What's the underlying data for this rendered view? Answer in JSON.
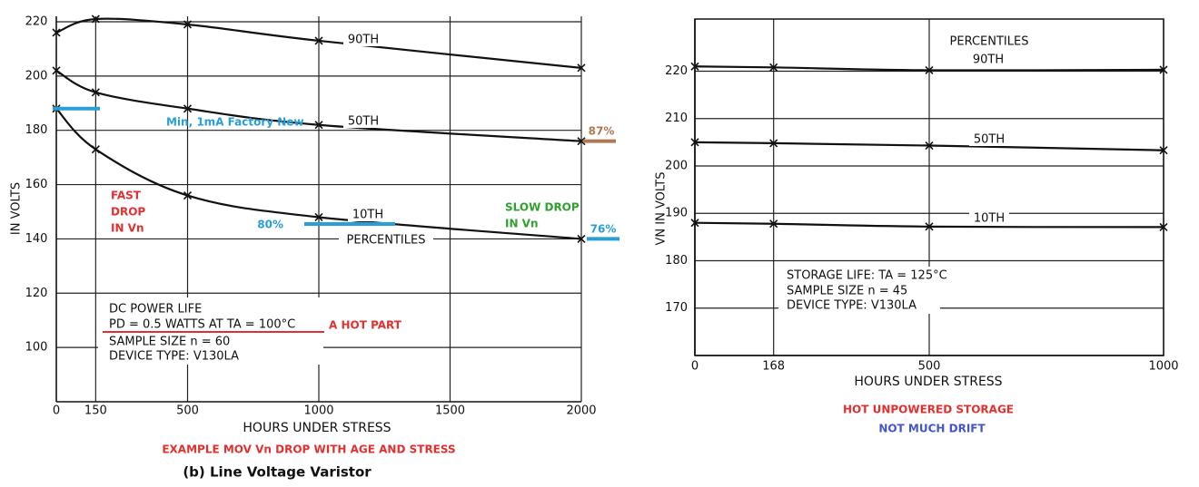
{
  "chart_data": [
    {
      "type": "line",
      "xlabel": "HOURS UNDER STRESS",
      "ylabel": "IN VOLTS",
      "x": [
        0,
        150,
        500,
        1000,
        2000
      ],
      "xlim": [
        0,
        2000
      ],
      "ylim": [
        80,
        222
      ],
      "xticks": [
        0,
        150,
        500,
        1000,
        1500,
        2000
      ],
      "yticks": [
        100,
        120,
        140,
        160,
        180,
        200,
        220
      ],
      "grid": true,
      "series": [
        {
          "name": "90TH",
          "color": "#111111",
          "values": [
            216,
            221,
            219,
            213,
            203
          ]
        },
        {
          "name": "50TH",
          "color": "#111111",
          "values": [
            202,
            194,
            188,
            182,
            176
          ]
        },
        {
          "name": "10TH",
          "color": "#111111",
          "values": [
            188,
            173,
            156,
            148,
            140
          ]
        }
      ],
      "series_note": "PERCENTILES",
      "box_lines": [
        "DC POWER LIFE",
        "PD = 0.5 WATTS AT TA = 100°C",
        "SAMPLE SIZE n = 60",
        "DEVICE TYPE: V130LA"
      ],
      "reference_lines": [
        {
          "label": "Min, 1mA Factory New",
          "value": 188,
          "color": "#2a9fd6"
        },
        {
          "label": "87%",
          "value": 176,
          "color": "#b07850"
        },
        {
          "label": "80%",
          "value": 145.5,
          "color": "#2a9fd6"
        },
        {
          "label": "76%",
          "value": 140,
          "color": "#2a9fd6"
        }
      ],
      "annotations": [
        {
          "lines": [
            "FAST",
            "DROP",
            "IN Vn"
          ],
          "color": "#e03030"
        },
        {
          "lines": [
            "SLOW DROP",
            "IN Vn"
          ],
          "color": "#30a030"
        },
        {
          "lines": [
            "A HOT PART"
          ],
          "color": "#e03030"
        }
      ],
      "caption": "EXAMPLE MOV Vn DROP WITH AGE AND STRESS",
      "subtitle": "(b)  Line Voltage Varistor"
    },
    {
      "type": "line",
      "xlabel": "HOURS UNDER STRESS",
      "ylabel": "VN IN VOLTS",
      "x": [
        0,
        168,
        500,
        1000
      ],
      "xlim": [
        0,
        1000
      ],
      "ylim": [
        160,
        231
      ],
      "xticks": [
        0,
        168,
        500,
        1000
      ],
      "yticks": [
        170,
        180,
        190,
        200,
        210,
        220
      ],
      "grid": true,
      "series": [
        {
          "name": "90TH",
          "color": "#111111",
          "values": [
            221,
            220.8,
            220.2,
            220.3
          ]
        },
        {
          "name": "50TH",
          "color": "#111111",
          "values": [
            205,
            204.8,
            204.3,
            203.3
          ]
        },
        {
          "name": "10TH",
          "color": "#111111",
          "values": [
            188,
            187.8,
            187.2,
            187.1
          ]
        }
      ],
      "series_note": "PERCENTILES",
      "box_lines": [
        "STORAGE LIFE: TA = 125°C",
        "SAMPLE SIZE n = 45",
        "DEVICE TYPE: V130LA"
      ],
      "annotations": [
        {
          "lines": [
            "HOT UNPOWERED STORAGE"
          ],
          "color": "#e03030"
        },
        {
          "lines": [
            "NOT MUCH DRIFT"
          ],
          "color": "#4455cc"
        }
      ]
    }
  ]
}
